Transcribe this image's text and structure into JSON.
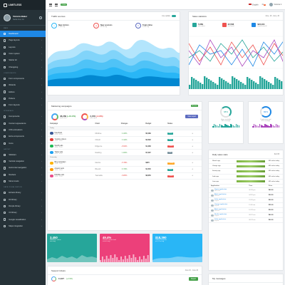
{
  "brand": "LIMITLESS",
  "user": {
    "name": "Victoria Baker",
    "location": "Santa Ana, CA"
  },
  "topbar": {
    "badge": "Online",
    "language": "English",
    "messages_count": "2",
    "user_name": "Victoria"
  },
  "sidebar": {
    "sections": [
      {
        "title": "MAIN",
        "items": [
          {
            "label": "Dashboard",
            "active": true
          },
          {
            "label": "Page layouts"
          },
          {
            "label": "Layouts"
          },
          {
            "label": "Color system"
          },
          {
            "label": "Starter kit"
          },
          {
            "label": "Changelog"
          }
        ]
      },
      {
        "title": "COMPONENTS",
        "items": [
          {
            "label": "Form components"
          },
          {
            "label": "Wizards"
          },
          {
            "label": "Editors"
          },
          {
            "label": "Pickers"
          },
          {
            "label": "Form layouts"
          }
        ]
      },
      {
        "title": "INTERFACE",
        "items": [
          {
            "label": "Components"
          },
          {
            "label": "Content appearance"
          },
          {
            "label": "CSS animations"
          },
          {
            "label": "Extra components"
          },
          {
            "label": "Icons"
          }
        ]
      },
      {
        "title": "LAYOUT",
        "items": [
          {
            "label": "Sidebars"
          },
          {
            "label": "Vertical navigation"
          },
          {
            "label": "Horizontal navigation"
          },
          {
            "label": "Navbars"
          },
          {
            "label": "Menu levels"
          }
        ]
      },
      {
        "title": "DATA VISUALIZATION",
        "items": [
          {
            "label": "Echarts library"
          },
          {
            "label": "D3 library"
          },
          {
            "label": "Dimple library"
          },
          {
            "label": "C3 library"
          },
          {
            "label": "Google visualization"
          },
          {
            "label": "Maps integration"
          }
        ]
      }
    ]
  },
  "traffic": {
    "title": "Traffic sources",
    "toggle_label": "Live update",
    "stats": [
      {
        "label": "New visitors",
        "sub": "2,349 avg",
        "color": "#29b6f6",
        "icon": "plus-icon"
      },
      {
        "label": "New sessions",
        "sub": "08:20 avg",
        "color": "#ef5350",
        "icon": "clock-icon"
      },
      {
        "label": "Total online",
        "sub": "5,378 avg",
        "color": "#5c6bc0",
        "icon": "pause-icon"
      }
    ]
  },
  "sales": {
    "title": "Sales statistics",
    "period": "June, 16 - June, 20",
    "stats": [
      {
        "value": "5,689",
        "sub": "new orders",
        "color": "#26a69a"
      },
      {
        "value": "32,568",
        "sub": "this month",
        "color": "#ef5350"
      },
      {
        "value": "$23,464",
        "sub": "expected profit",
        "color": "#1e88e5"
      }
    ]
  },
  "campaigns": {
    "title": "Marketing campaigns",
    "badge": "28 active",
    "summary": [
      {
        "value": "38,289",
        "delta": "(+16.2%)",
        "sub": "total clicks"
      },
      {
        "value": "2,458",
        "delta": "(-4.9%)",
        "sub": "total spent"
      }
    ],
    "view_button": "View report",
    "headers": [
      "Campaign",
      "Client",
      "Changes",
      "Budget",
      "Status",
      ""
    ],
    "groups": [
      {
        "label": "Today",
        "rows": [
          {
            "name": "Facebook",
            "sub": "02:00 - 03:00",
            "client": "Mintlime",
            "change": "↑ 2.43%",
            "up": true,
            "budget": "$5,489",
            "status": "Active",
            "status_color": "#26a69a",
            "logo": "#3b5998"
          },
          {
            "name": "Youtube videos",
            "sub": "13:00 - 14:00",
            "client": "CDsoft",
            "change": "↑ 3.12%",
            "up": true,
            "budget": "$2,592",
            "status": "Active",
            "status_color": "#26a69a",
            "logo": "#e53935"
          },
          {
            "name": "Spotify ads",
            "sub": "10:00 - 11:00",
            "client": "Diligence",
            "change": "↓ 8.02%",
            "up": false,
            "budget": "$1,268",
            "status": "Closed",
            "status_color": "#ef5350",
            "logo": "#1db954"
          },
          {
            "name": "Twitter ads",
            "sub": "04:00 - 05:00",
            "client": "Dashing",
            "change": "↑ 1.63%",
            "up": true,
            "budget": "$7,467",
            "status": "Hold",
            "status_color": "#78909c",
            "logo": "#1da1f2"
          }
        ]
      },
      {
        "label": "Yesterday",
        "rows": [
          {
            "name": "Bing campaign",
            "sub": "15:00 - 16:00",
            "client": "Metrics",
            "change": "↓ 5.78%",
            "up": false,
            "budget": "$970",
            "status": "Pending",
            "status_color": "#ffa726",
            "logo": "#ffb300"
          },
          {
            "name": "Amazon ads",
            "sub": "18:00 - 19:00",
            "client": "Blueish",
            "change": "↑ 6.79%",
            "up": true,
            "budget": "$1,540",
            "status": "Active",
            "status_color": "#26a69a",
            "logo": "#ff9900"
          },
          {
            "name": "Dribbble ads",
            "sub": "20:00 - 21:00",
            "client": "Teamable",
            "change": "↓ 9.83%",
            "up": false,
            "budget": "$8,350",
            "status": "Closed",
            "status_color": "#ef5350",
            "logo": "#ea4c89"
          }
        ]
      }
    ]
  },
  "mini_stats": [
    {
      "ring": "68%",
      "big": "68%",
      "sub": "Hours available",
      "sub2": "64% average",
      "color": "#26a69a"
    },
    {
      "ring": "82%",
      "big": "82%",
      "sub": "Productivity goal",
      "sub2": "87% average",
      "color": "#1e88e5"
    }
  ],
  "daily_sales": {
    "title": "Daily sales stats",
    "total": "$4,378",
    "rows": [
      {
        "name": "Sketch app",
        "value": "465 sales today"
      },
      {
        "name": "Vintage app",
        "value": "465 sales today"
      },
      {
        "name": "Smarty app",
        "value": "465 sales today"
      },
      {
        "name": "Jade app",
        "value": "465 sales today"
      },
      {
        "name": "Lima app",
        "value": "465 sales today"
      }
    ],
    "headers": [
      "Application",
      "Time",
      "Price"
    ],
    "orders": [
      {
        "app": "Sigma application",
        "sub": "New order",
        "time": "06:28 pm",
        "price": "$49.90"
      },
      {
        "app": "Alpha application",
        "sub": "Renewal",
        "time": "04:52 pm",
        "price": "$90.50"
      },
      {
        "app": "Delta application",
        "sub": "Support",
        "time": "01:26 pm",
        "price": "$60.00"
      },
      {
        "app": "Omega application",
        "sub": "Expired",
        "time": "11:46 am",
        "price": "$55.00"
      },
      {
        "app": "Alpha application",
        "sub": "Renewal",
        "time": "10:29 am",
        "price": "$90.50"
      },
      {
        "app": "Nestle application",
        "sub": "Support",
        "time": "09:12 am",
        "price": "$40.00"
      },
      {
        "app": "Delta application",
        "sub": "Expired",
        "time": "08:23 am",
        "price": "$60.00"
      }
    ]
  },
  "color_cards": [
    {
      "big": "3,450",
      "sub": "Members online",
      "sub2": "489 avg",
      "color": "#26a69a"
    },
    {
      "big": "49.4%",
      "sub": "Current server load",
      "sub2": "34.6% avg",
      "color": "#ec407a"
    },
    {
      "big": "$18,390",
      "sub": "Today's revenue",
      "sub2": "$37,578 avg",
      "color": "#29b6f6"
    }
  ],
  "support": {
    "title": "Support tickets",
    "period": "June 16 - June 20",
    "tickets": "14,327",
    "delta": "(+2.9%)",
    "button": "Report"
  },
  "messages": {
    "title": "My messages"
  }
}
